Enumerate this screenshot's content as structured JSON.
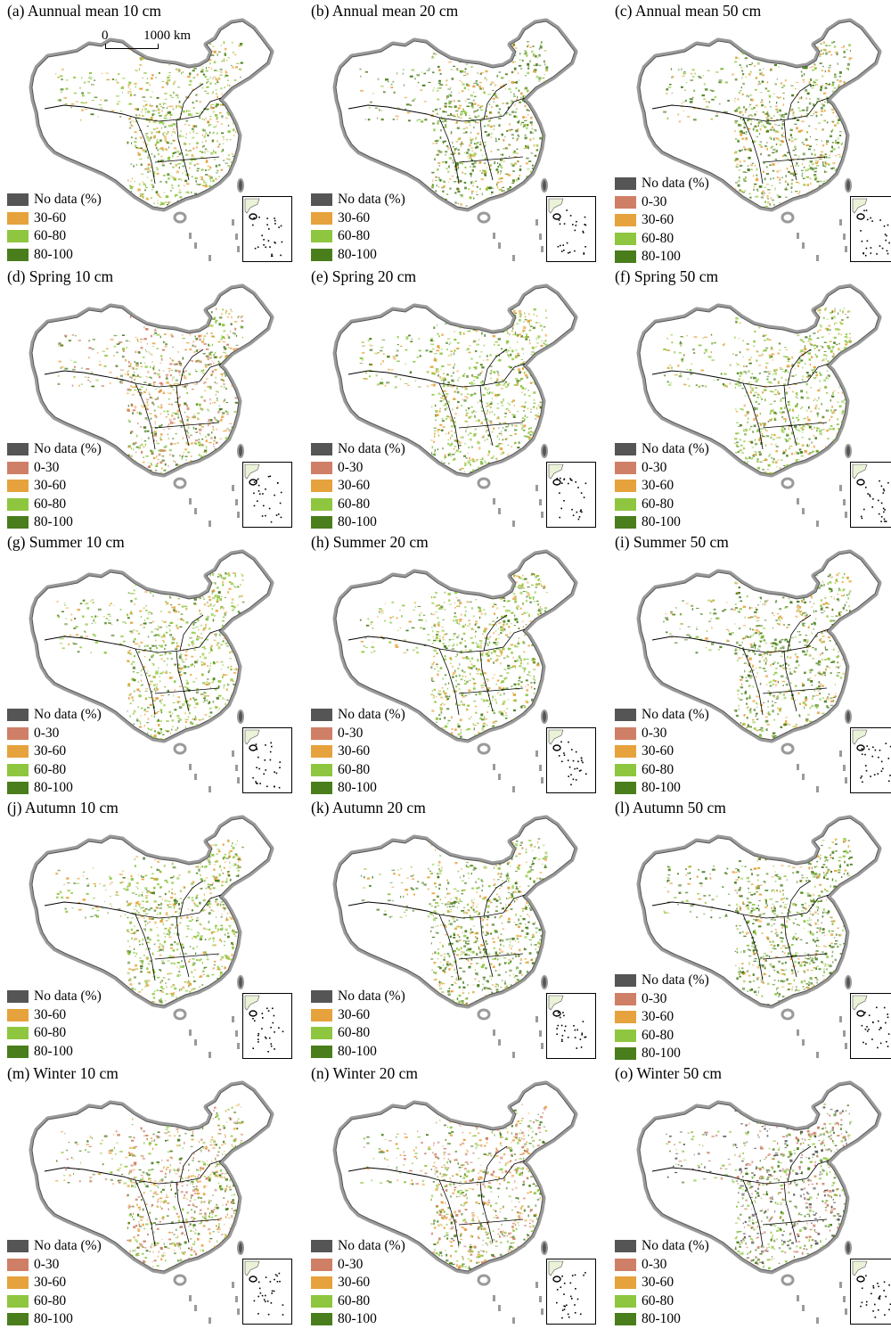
{
  "figure": {
    "scale_bar": {
      "start": "0",
      "end": "1000 km"
    },
    "colors": {
      "no_data": "#555555",
      "c0_30": "#cf7f66",
      "c30_60": "#e6a23c",
      "c60_80": "#8ec63f",
      "c80_100": "#4a7d1c",
      "outline": "#9a9a9a"
    },
    "legend_labels": {
      "no_data": "No data (%)",
      "c0_30": "0-30",
      "c30_60": "30-60",
      "c60_80": "60-80",
      "c80_100": "80-100"
    },
    "panels": [
      {
        "title": "(a) Aunnual mean 10 cm",
        "legend": [
          "no_data",
          "c30_60",
          "c60_80",
          "c80_100"
        ],
        "has_scale": true
      },
      {
        "title": "(b) Annual mean 20 cm",
        "legend": [
          "no_data",
          "c30_60",
          "c60_80",
          "c80_100"
        ],
        "has_scale": false
      },
      {
        "title": "(c) Annual mean 50 cm",
        "legend": [
          "no_data",
          "c0_30",
          "c30_60",
          "c60_80",
          "c80_100"
        ],
        "has_scale": false
      },
      {
        "title": "(d) Spring 10 cm",
        "legend": [
          "no_data",
          "c0_30",
          "c30_60",
          "c60_80",
          "c80_100"
        ],
        "has_scale": false
      },
      {
        "title": "(e) Spring 20 cm",
        "legend": [
          "no_data",
          "c0_30",
          "c30_60",
          "c60_80",
          "c80_100"
        ],
        "has_scale": false
      },
      {
        "title": "(f) Spring 50 cm",
        "legend": [
          "no_data",
          "c0_30",
          "c30_60",
          "c60_80",
          "c80_100"
        ],
        "has_scale": false
      },
      {
        "title": "(g) Summer 10 cm",
        "legend": [
          "no_data",
          "c0_30",
          "c30_60",
          "c60_80",
          "c80_100"
        ],
        "has_scale": false
      },
      {
        "title": "(h) Summer 20 cm",
        "legend": [
          "no_data",
          "c0_30",
          "c30_60",
          "c60_80",
          "c80_100"
        ],
        "has_scale": false
      },
      {
        "title": "(i) Summer 50 cm",
        "legend": [
          "no_data",
          "c0_30",
          "c30_60",
          "c60_80",
          "c80_100"
        ],
        "has_scale": false
      },
      {
        "title": "(j) Autumn 10 cm",
        "legend": [
          "no_data",
          "c30_60",
          "c60_80",
          "c80_100"
        ],
        "has_scale": false
      },
      {
        "title": "(k) Autumn 20 cm",
        "legend": [
          "no_data",
          "c30_60",
          "c60_80",
          "c80_100"
        ],
        "has_scale": false
      },
      {
        "title": "(l) Autumn 50 cm",
        "legend": [
          "no_data",
          "c0_30",
          "c30_60",
          "c60_80",
          "c80_100"
        ],
        "has_scale": false
      },
      {
        "title": "(m) Winter 10 cm",
        "legend": [
          "no_data",
          "c0_30",
          "c30_60",
          "c60_80",
          "c80_100"
        ],
        "has_scale": false
      },
      {
        "title": "(n) Winter 20 cm",
        "legend": [
          "no_data",
          "c0_30",
          "c30_60",
          "c60_80",
          "c80_100"
        ],
        "has_scale": false
      },
      {
        "title": "(o) Winter 50 cm",
        "legend": [
          "no_data",
          "c0_30",
          "c30_60",
          "c60_80",
          "c80_100"
        ],
        "has_scale": false
      }
    ]
  }
}
